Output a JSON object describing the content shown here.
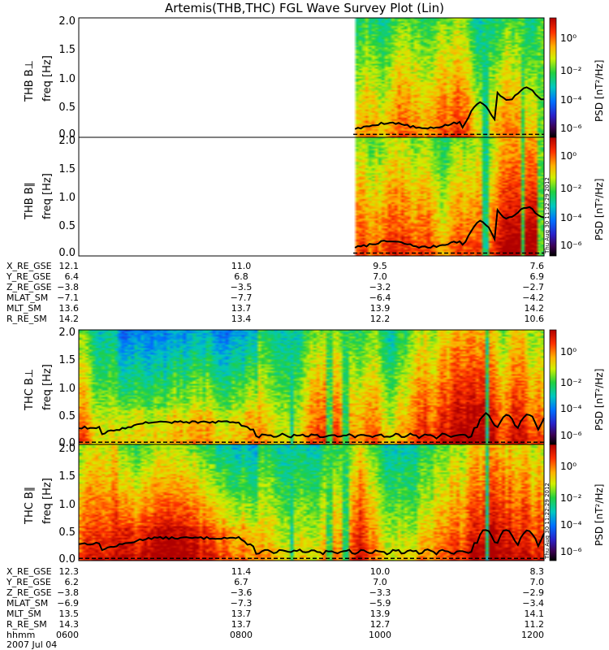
{
  "title": "Artemis(THB,THC) FGL Wave Survey Plot (Lin)",
  "stamp": "Thu Aug 30 11:22:29 2012",
  "chart_data": [
    {
      "type": "heatmap",
      "panels": [
        {
          "name": "THB B⊥",
          "ylabel": "freq [Hz]",
          "probe": "THB",
          "component": "perp"
        },
        {
          "name": "THB B∥",
          "ylabel": "freq [Hz]",
          "probe": "THB",
          "component": "par"
        }
      ],
      "y_ticks": [
        "0.0",
        "0.5",
        "1.0",
        "1.5",
        "2.0"
      ],
      "ylim": [
        0,
        2.05
      ],
      "data_start_fraction": 0.59,
      "colorbar": {
        "label": "PSD [nT²/Hz]",
        "ticks": [
          "10⁰",
          "10⁻²",
          "10⁻⁴",
          "10⁻⁶"
        ]
      }
    },
    {
      "type": "heatmap",
      "panels": [
        {
          "name": "THC B⊥",
          "ylabel": "freq [Hz]",
          "probe": "THC",
          "component": "perp"
        },
        {
          "name": "THC B∥",
          "ylabel": "freq [Hz]",
          "probe": "THC",
          "component": "par"
        }
      ],
      "y_ticks": [
        "0.0",
        "0.5",
        "1.0",
        "1.5",
        "2.0"
      ],
      "ylim": [
        0,
        2.05
      ],
      "data_start_fraction": 0.0,
      "colorbar": {
        "label": "PSD [nT²/Hz]",
        "ticks": [
          "10⁰",
          "10⁻²",
          "10⁻⁴",
          "10⁻⁶"
        ]
      }
    }
  ],
  "ephem_b": {
    "rows": [
      {
        "label": "X_RE_GSE",
        "values": [
          "12.1",
          "11.0",
          "9.5",
          "7.6"
        ]
      },
      {
        "label": "Y_RE_GSE",
        "values": [
          "6.4",
          "6.8",
          "7.0",
          "6.9"
        ]
      },
      {
        "label": "Z_RE_GSE",
        "values": [
          "−3.8",
          "−3.5",
          "−3.2",
          "−2.7"
        ]
      },
      {
        "label": "MLAT_SM",
        "values": [
          "−7.1",
          "−7.7",
          "−6.4",
          "−4.2"
        ]
      },
      {
        "label": "MLT_SM",
        "values": [
          "13.6",
          "13.7",
          "13.9",
          "14.2"
        ]
      },
      {
        "label": "R_RE_SM",
        "values": [
          "14.2",
          "13.4",
          "12.2",
          "10.6"
        ]
      }
    ]
  },
  "ephem_c": {
    "rows": [
      {
        "label": "X_RE_GSE",
        "values": [
          "12.3",
          "11.4",
          "10.0",
          "8.3"
        ]
      },
      {
        "label": "Y_RE_GSE",
        "values": [
          "6.2",
          "6.7",
          "7.0",
          "7.0"
        ]
      },
      {
        "label": "Z_RE_GSE",
        "values": [
          "−3.8",
          "−3.6",
          "−3.3",
          "−2.9"
        ]
      },
      {
        "label": "MLAT_SM",
        "values": [
          "−6.9",
          "−7.3",
          "−5.9",
          "−3.4"
        ]
      },
      {
        "label": "MLT_SM",
        "values": [
          "13.5",
          "13.7",
          "13.9",
          "14.1"
        ]
      },
      {
        "label": "R_RE_SM",
        "values": [
          "14.3",
          "13.7",
          "12.7",
          "11.2"
        ]
      },
      {
        "label": "hhmm",
        "values": [
          "0600",
          "0800",
          "1000",
          "1200"
        ]
      }
    ]
  },
  "date_label": "2007 Jul 04"
}
